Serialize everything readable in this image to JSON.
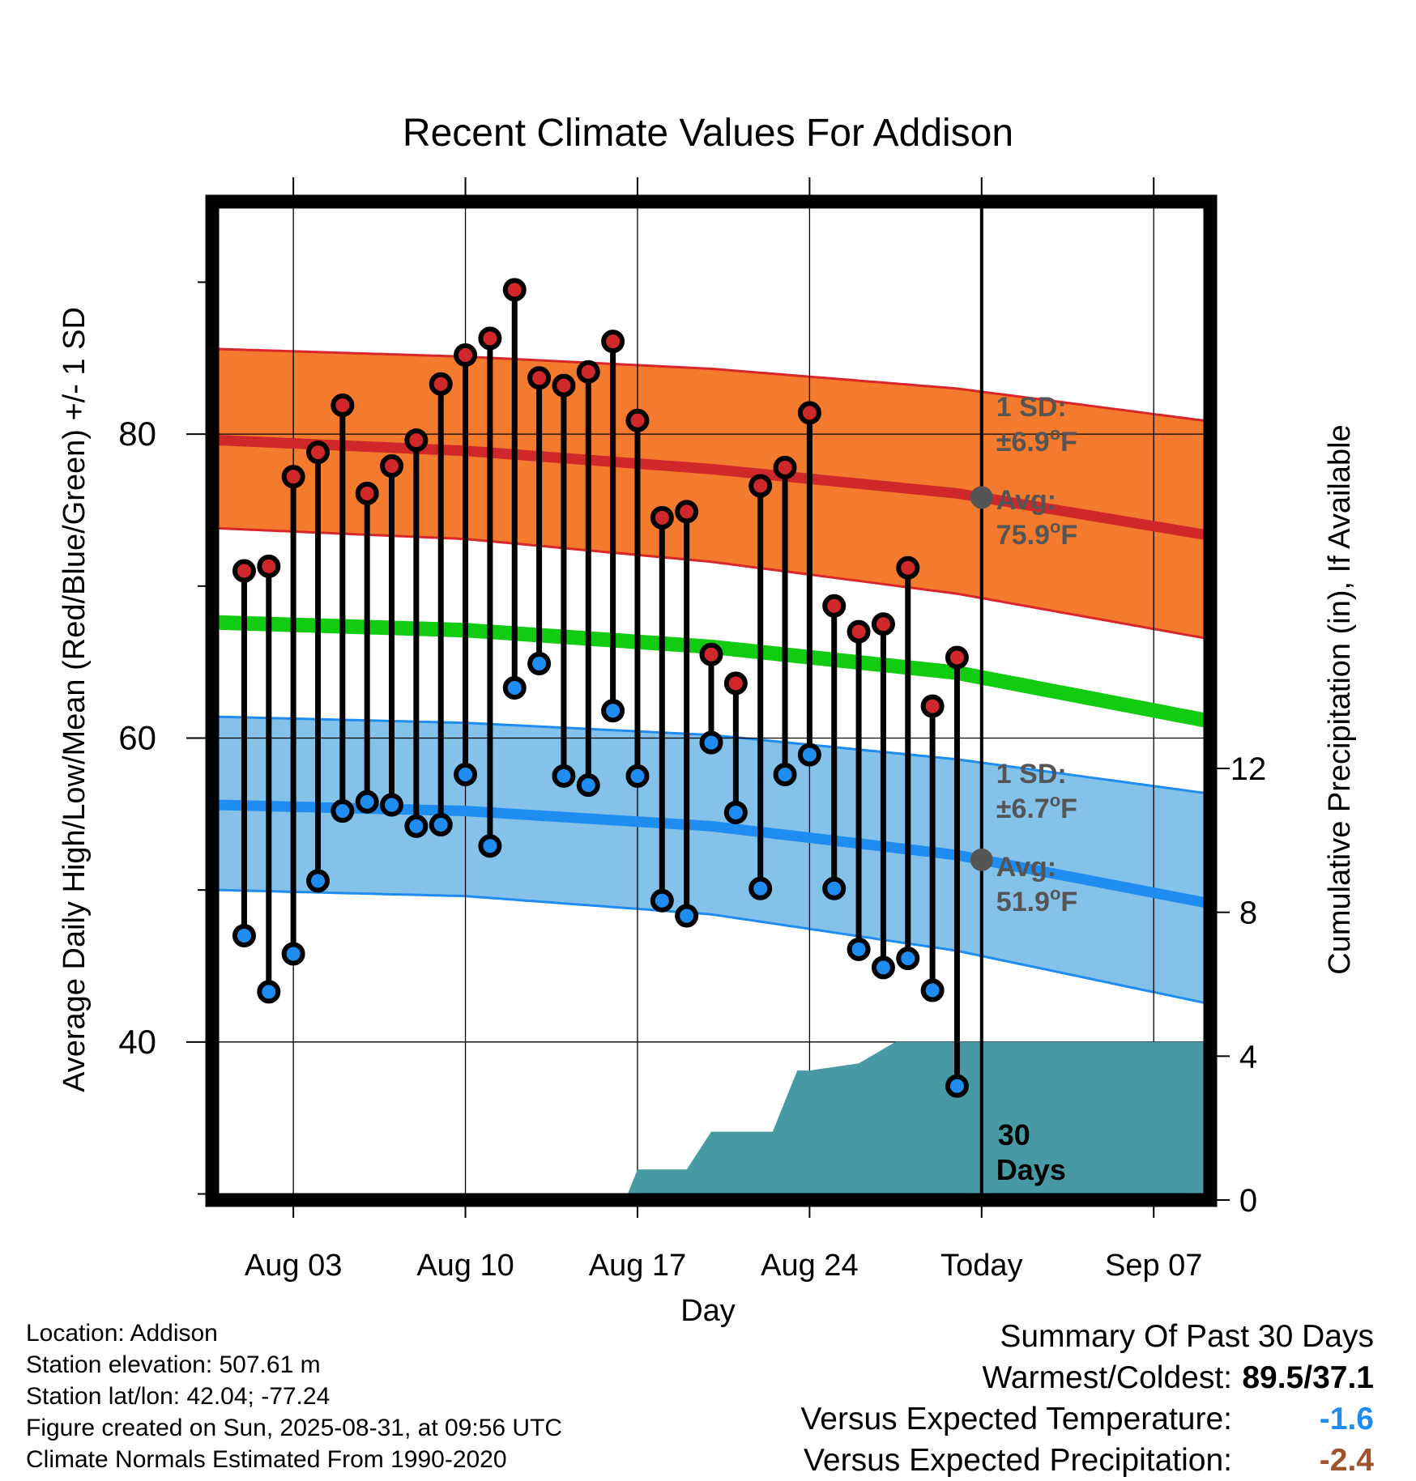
{
  "chart_data": {
    "type": "line",
    "title": "Recent Climate Values For Addison",
    "xlabel": "Day",
    "ylabel_left": "Average Daily High/Low/Mean (Red/Blue/Green) +/- 1 SD",
    "ylabel_right": "Cumulative Precipitation (in), If Available",
    "x_ticks": [
      {
        "day": 3,
        "label": "Aug 03"
      },
      {
        "day": 10,
        "label": "Aug 10"
      },
      {
        "day": 17,
        "label": "Aug 17"
      },
      {
        "day": 24,
        "label": "Aug 24"
      },
      {
        "day": 31,
        "label": "Today"
      },
      {
        "day": 38,
        "label": "Sep 07"
      }
    ],
    "xlim": [
      -0.3,
      40.3
    ],
    "ylim": [
      29.6,
      95.3
    ],
    "y_ticks": [
      40,
      60,
      80
    ],
    "y2_ticks": [
      0,
      4,
      8,
      12
    ],
    "y2lim": [
      0,
      27.76
    ],
    "today_day": 31,
    "days": [
      1,
      2,
      3,
      4,
      5,
      6,
      7,
      8,
      9,
      10,
      11,
      12,
      13,
      14,
      15,
      16,
      17,
      18,
      19,
      20,
      21,
      22,
      23,
      24,
      25,
      26,
      27,
      28,
      29,
      30
    ],
    "observed_high": [
      71.0,
      71.3,
      77.2,
      78.8,
      81.9,
      76.1,
      77.9,
      79.6,
      83.3,
      85.2,
      86.3,
      89.5,
      83.7,
      83.2,
      84.1,
      86.1,
      80.9,
      74.5,
      74.9,
      65.5,
      63.6,
      76.6,
      77.8,
      81.4,
      68.7,
      67.0,
      67.5,
      71.2,
      62.1,
      65.3
    ],
    "observed_low": [
      47.0,
      43.3,
      45.8,
      50.6,
      55.2,
      55.8,
      55.6,
      54.2,
      54.3,
      57.6,
      52.9,
      63.3,
      64.9,
      57.5,
      56.9,
      61.8,
      57.5,
      49.3,
      48.3,
      59.7,
      55.1,
      50.1,
      57.6,
      58.9,
      50.1,
      46.1,
      44.9,
      45.5,
      43.4,
      37.1
    ],
    "normal_high": {
      "x": [
        0,
        10,
        20,
        30,
        40
      ],
      "values": [
        79.6,
        78.9,
        77.7,
        76.1,
        73.4
      ]
    },
    "normal_low": {
      "x": [
        0,
        10,
        20,
        30,
        40
      ],
      "values": [
        55.6,
        55.2,
        54.2,
        52.3,
        49.2
      ]
    },
    "normal_mean": {
      "x": [
        0,
        10,
        20,
        30,
        40
      ],
      "values": [
        67.6,
        67.1,
        66.0,
        64.3,
        61.2
      ]
    },
    "high_band": {
      "x": [
        0,
        10,
        20,
        30,
        40
      ],
      "upper": [
        85.6,
        85.1,
        84.3,
        83.0,
        80.9
      ],
      "lower": [
        73.8,
        73.1,
        71.6,
        69.5,
        66.6
      ]
    },
    "low_band": {
      "x": [
        0,
        10,
        20,
        30,
        40
      ],
      "upper": [
        61.4,
        61.0,
        60.2,
        58.6,
        56.4
      ],
      "lower": [
        50.0,
        49.6,
        48.4,
        46.0,
        42.6
      ]
    },
    "precip": {
      "x": [
        -0.3,
        15.5,
        16.5,
        17.0,
        19.0,
        20.0,
        22.5,
        23.5,
        24.0,
        26.0,
        27.5,
        40.3
      ],
      "values": [
        0,
        0,
        0,
        0.85,
        0.85,
        1.9,
        1.9,
        3.6,
        3.6,
        3.8,
        4.4,
        4.4
      ]
    },
    "annotations": {
      "high_sd": "1 SD:",
      "high_sd_value": "±6.9",
      "high_avg": "Avg:",
      "high_avg_value": "75.9",
      "low_sd": "1 SD:",
      "low_sd_value": "±6.7",
      "low_avg": "Avg:",
      "low_avg_value": "51.9",
      "unit": "F",
      "degree": "o",
      "period_1": "30",
      "period_2": "Days"
    },
    "colors": {
      "high_band": "#f47b2e",
      "high_band_edge": "#d9262a",
      "normal_high": "#d0282a",
      "low_band": "#85c2ea",
      "low_band_edge": "#1e8cf0",
      "normal_low": "#1e8cf0",
      "normal_mean": "#11cc11",
      "high_dot": "#d0282a",
      "low_dot": "#1e8cf0",
      "precip": "#479aa4",
      "annotation": "#555555"
    }
  },
  "footer": {
    "location": "Location: Addison",
    "elevation": "Station elevation: 507.61 m",
    "latlon": "Station lat/lon: 42.04; -77.24",
    "created": "Figure created on Sun, 2025-08-31, at 09:56 UTC",
    "normals": "Climate Normals Estimated From 1990-2020"
  },
  "summary": {
    "title": "Summary Of Past 30 Days",
    "warmest_label": "Warmest/Coldest:",
    "warmest_value": "89.5/37.1",
    "temp_label": "Versus Expected Temperature:",
    "temp_value": "-1.6",
    "temp_color": "#1e8cf0",
    "precip_label": "Versus Expected Precipitation:",
    "precip_value": "-2.4",
    "precip_color": "#a0522d"
  }
}
